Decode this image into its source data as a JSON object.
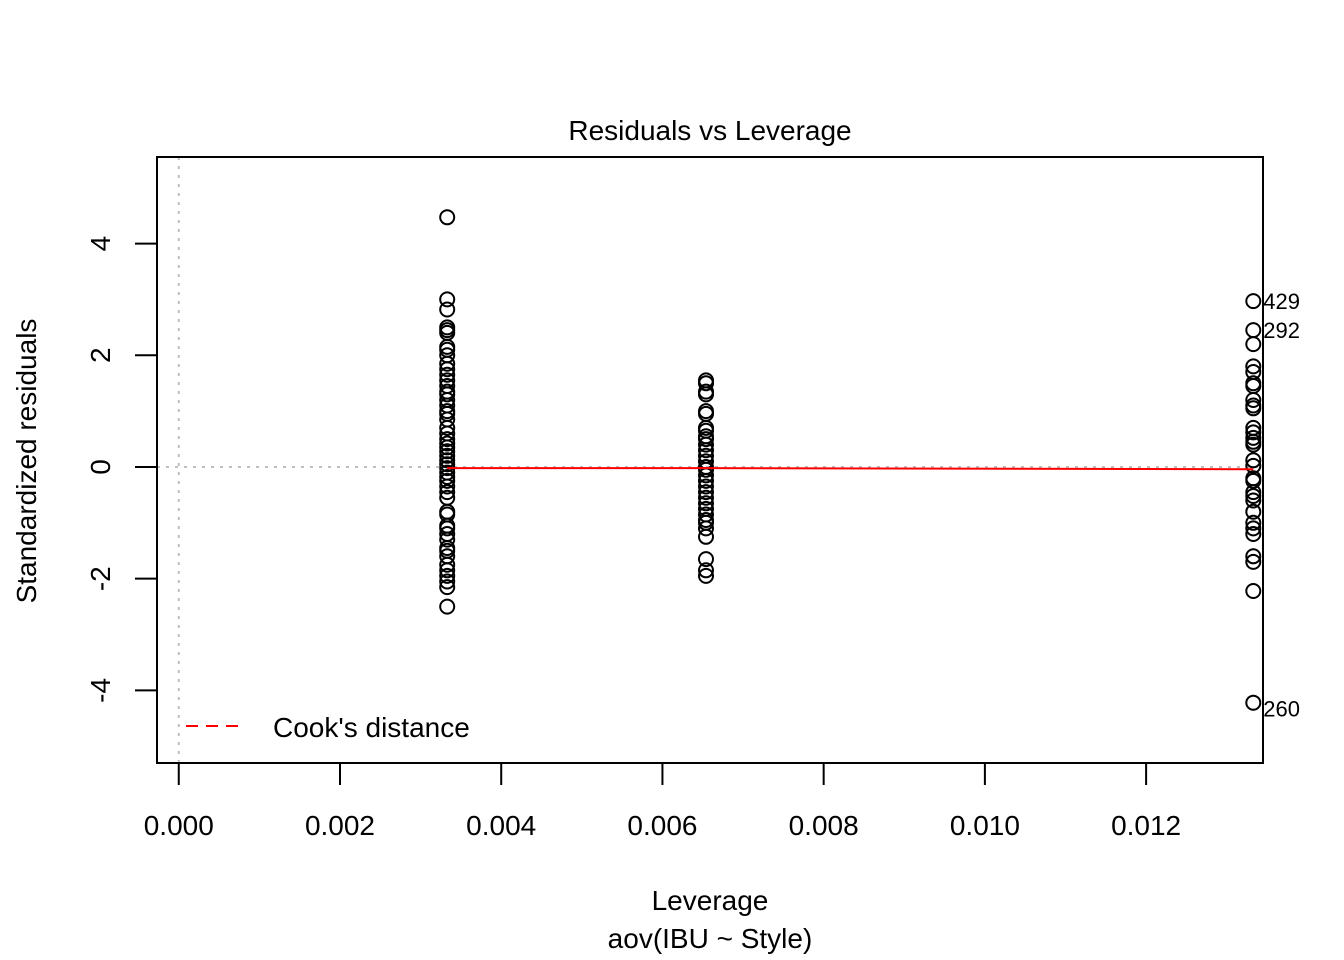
{
  "chart_data": {
    "type": "scatter",
    "title": "Residuals vs Leverage",
    "xlabel": "Leverage",
    "subtitle": "aov(IBU ~ Style)",
    "ylabel": "Standardized residuals",
    "xlim": [
      -0.00027,
      0.01345
    ],
    "ylim": [
      -5.3,
      5.55
    ],
    "x_ticks": [
      0.0,
      0.002,
      0.004,
      0.006,
      0.008,
      0.01,
      0.012
    ],
    "x_tick_labels": [
      "0.000",
      "0.002",
      "0.004",
      "0.006",
      "0.008",
      "0.010",
      "0.012"
    ],
    "y_ticks": [
      -4,
      -2,
      0,
      2,
      4
    ],
    "y_tick_labels": [
      "-4",
      "-2",
      "0",
      "2",
      "4"
    ],
    "grid": false,
    "reference_lines": {
      "h": 0,
      "v": 0,
      "style": "dotted",
      "color": "#bebebe"
    },
    "legend": {
      "position": "bottom-left",
      "entries": [
        {
          "label": "Cook's distance",
          "color": "#ff0000",
          "style": "dashed"
        }
      ]
    },
    "series": [
      {
        "x": 0.00333,
        "values": [
          4.47,
          3.0,
          2.82,
          2.5,
          2.45,
          2.4,
          2.15,
          2.1,
          2.0,
          1.85,
          1.75,
          1.65,
          1.55,
          1.45,
          1.35,
          1.3,
          1.2,
          1.1,
          1.0,
          0.95,
          0.85,
          0.7,
          0.6,
          0.5,
          0.42,
          0.35,
          0.28,
          0.2,
          0.12,
          0.05,
          -0.02,
          -0.1,
          -0.18,
          -0.25,
          -0.35,
          -0.45,
          -0.55,
          -0.8,
          -0.85,
          -1.05,
          -1.1,
          -1.2,
          -1.3,
          -1.45,
          -1.5,
          -1.6,
          -1.75,
          -1.85,
          -1.95,
          -2.05,
          -2.15,
          -2.5
        ]
      },
      {
        "x": 0.00654,
        "values": [
          1.55,
          1.5,
          1.35,
          1.3,
          1.0,
          0.95,
          0.7,
          0.65,
          0.55,
          0.5,
          0.4,
          0.3,
          0.2,
          0.1,
          0.0,
          -0.05,
          -0.15,
          -0.25,
          -0.35,
          -0.45,
          -0.55,
          -0.65,
          -0.75,
          -0.85,
          -0.95,
          -1.0,
          -1.1,
          -1.25,
          -1.65,
          -1.85,
          -1.95
        ]
      },
      {
        "x": 0.01333,
        "values": [
          2.97,
          2.45,
          2.2,
          1.8,
          1.7,
          1.5,
          1.45,
          1.2,
          1.1,
          1.05,
          0.7,
          0.62,
          0.52,
          0.45,
          0.4,
          0.12,
          0.02,
          -0.2,
          -0.25,
          -0.45,
          -0.52,
          -0.6,
          -0.8,
          -1.0,
          -1.1,
          -1.2,
          -1.6,
          -1.7,
          -2.22,
          -4.22
        ]
      }
    ],
    "point_labels": [
      {
        "text": "429",
        "x": 0.01333,
        "y": 2.97
      },
      {
        "text": "292",
        "x": 0.01333,
        "y": 2.45
      },
      {
        "text": "260",
        "x": 0.01333,
        "y": -4.22
      }
    ],
    "smoother": {
      "color": "#ff0000",
      "x": [
        0.00333,
        0.00654,
        0.01333
      ],
      "y": [
        -0.02,
        -0.02,
        -0.04
      ]
    }
  }
}
